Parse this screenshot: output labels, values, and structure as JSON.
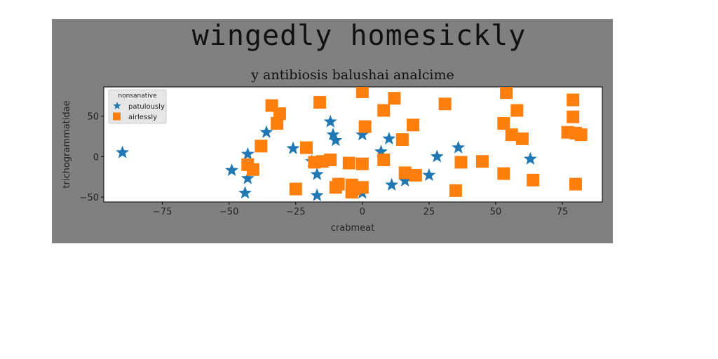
{
  "figure": {
    "suptitle": "wingedly homesickly"
  },
  "chart_data": {
    "type": "scatter",
    "title": "y antibiosis balushai analcime",
    "xlabel": "crabmeat",
    "ylabel": "trichogrammatidae",
    "xlim": [
      -97,
      90
    ],
    "ylim": [
      -56,
      86
    ],
    "xticks": [
      -75,
      -50,
      -25,
      0,
      25,
      50,
      75
    ],
    "yticks": [
      -50,
      0,
      50
    ],
    "grid": false,
    "legend": {
      "title": "nonsanative",
      "placement": "top-left",
      "entries": [
        "patulously",
        "airlessly"
      ]
    },
    "series": [
      {
        "name": "patulously",
        "marker": "star",
        "color": "#1f77b4",
        "points": [
          [
            -90,
            5
          ],
          [
            -49,
            -17
          ],
          [
            -44,
            -45
          ],
          [
            -43,
            -27
          ],
          [
            -43,
            3
          ],
          [
            -36,
            30
          ],
          [
            -26,
            10
          ],
          [
            -19,
            -6
          ],
          [
            -17,
            -22
          ],
          [
            -17,
            -48
          ],
          [
            -12,
            43
          ],
          [
            -11,
            27
          ],
          [
            -10,
            20
          ],
          [
            -2,
            -37
          ],
          [
            0,
            27
          ],
          [
            0,
            -45
          ],
          [
            7,
            6
          ],
          [
            10,
            22
          ],
          [
            11,
            -35
          ],
          [
            16,
            -30
          ],
          [
            25,
            -23
          ],
          [
            28,
            0
          ],
          [
            36,
            11
          ],
          [
            63,
            -3
          ]
        ]
      },
      {
        "name": "airlessly",
        "marker": "square",
        "color": "#ff7f0e",
        "points": [
          [
            -43,
            -10
          ],
          [
            -41,
            -16
          ],
          [
            -38,
            13
          ],
          [
            -34,
            63
          ],
          [
            -31,
            53
          ],
          [
            -32,
            41
          ],
          [
            -25,
            -40
          ],
          [
            -21,
            11
          ],
          [
            -18,
            -7
          ],
          [
            -16,
            67
          ],
          [
            -15,
            -6
          ],
          [
            -12,
            -4
          ],
          [
            -10,
            -38
          ],
          [
            -9,
            -34
          ],
          [
            -5,
            -8
          ],
          [
            -4,
            -35
          ],
          [
            -4,
            -44
          ],
          [
            -3,
            -40
          ],
          [
            0,
            -38
          ],
          [
            0,
            -9
          ],
          [
            0,
            80
          ],
          [
            1,
            37
          ],
          [
            8,
            57
          ],
          [
            8,
            -4
          ],
          [
            12,
            72
          ],
          [
            15,
            21
          ],
          [
            16,
            -20
          ],
          [
            19,
            39
          ],
          [
            20,
            -23
          ],
          [
            31,
            65
          ],
          [
            35,
            -42
          ],
          [
            37,
            -7
          ],
          [
            45,
            -6
          ],
          [
            53,
            -21
          ],
          [
            53,
            41
          ],
          [
            54,
            79
          ],
          [
            56,
            27
          ],
          [
            58,
            57
          ],
          [
            60,
            22
          ],
          [
            64,
            -29
          ],
          [
            77,
            30
          ],
          [
            79,
            49
          ],
          [
            79,
            70
          ],
          [
            80,
            29
          ],
          [
            80,
            -34
          ],
          [
            82,
            27
          ]
        ]
      }
    ]
  }
}
